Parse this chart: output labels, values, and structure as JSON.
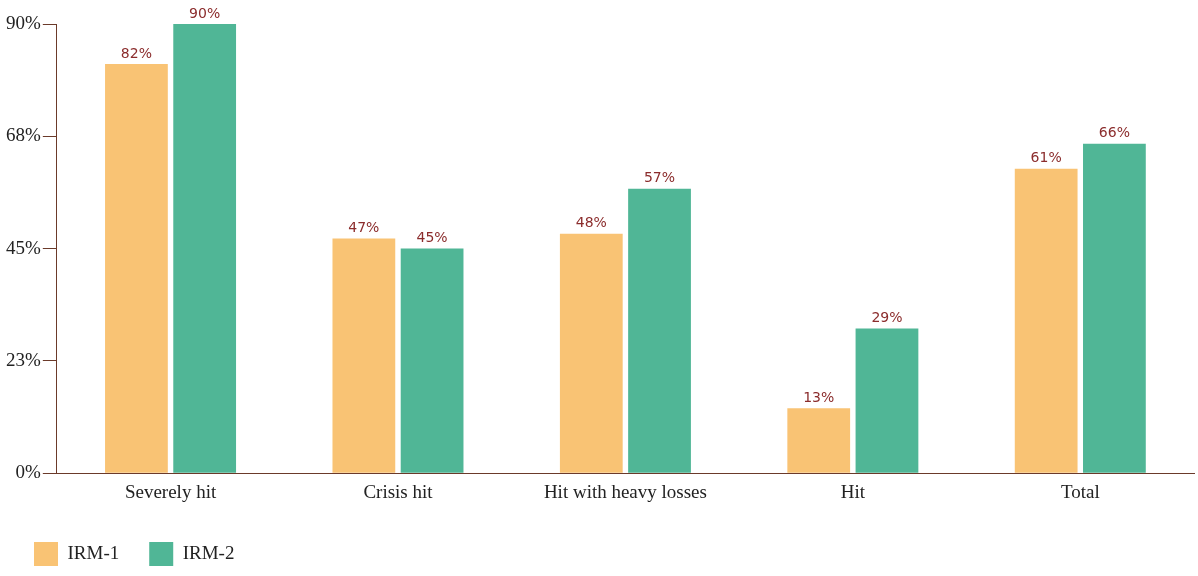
{
  "chart_data": {
    "type": "bar",
    "categories": [
      "Severely hit",
      "Crisis hit",
      "Hit with heavy losses",
      "Hit",
      "Total"
    ],
    "series": [
      {
        "name": "IRM-1",
        "color": "#f9c374",
        "values": [
          82,
          47,
          48,
          13,
          61
        ]
      },
      {
        "name": "IRM-2",
        "color": "#50b696",
        "values": [
          90,
          45,
          57,
          29,
          66
        ]
      }
    ],
    "ylim": [
      0,
      90
    ],
    "yticks": [
      {
        "value": 0,
        "label": "0%"
      },
      {
        "value": 22.5,
        "label": "23%"
      },
      {
        "value": 45,
        "label": "45%"
      },
      {
        "value": 67.5,
        "label": "68%"
      },
      {
        "value": 90,
        "label": "90%"
      }
    ],
    "value_labels": [
      [
        "82%",
        "47%",
        "48%",
        "13%",
        "61%"
      ],
      [
        "90%",
        "45%",
        "57%",
        "29%",
        "66%"
      ]
    ],
    "grid": false,
    "legend": "bottom left"
  }
}
